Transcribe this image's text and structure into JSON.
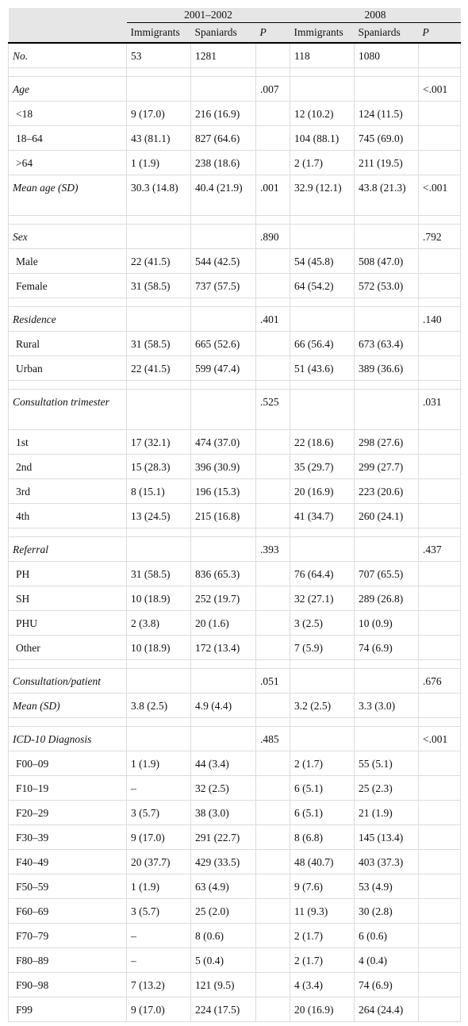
{
  "header": {
    "group1": "2001–2002",
    "group2": "2008",
    "columns": [
      "Immigrants",
      "Spaniards",
      "P",
      "Immigrants",
      "Spaniards",
      "P"
    ]
  },
  "rows": [
    {
      "type": "section",
      "label": "No.",
      "cells": [
        "53",
        "1281",
        "",
        "118",
        "1080",
        ""
      ]
    },
    {
      "type": "spacer"
    },
    {
      "type": "section",
      "label": "Age",
      "cells": [
        "",
        "",
        ".007",
        "",
        "",
        "<.001"
      ]
    },
    {
      "type": "sub",
      "label": "<18",
      "cells": [
        "9 (17.0)",
        "216 (16.9)",
        "",
        "12 (10.2)",
        "124 (11.5)",
        ""
      ]
    },
    {
      "type": "sub",
      "label": "18–64",
      "cells": [
        "43 (81.1)",
        "827 (64.6)",
        "",
        "104 (88.1)",
        "745 (69.0)",
        ""
      ]
    },
    {
      "type": "sub",
      "label": ">64",
      "cells": [
        "1 (1.9)",
        "238 (18.6)",
        "",
        "2 (1.7)",
        "211 (19.5)",
        ""
      ]
    },
    {
      "type": "section",
      "tall": true,
      "label": "Mean age (SD)",
      "cells": [
        "30.3 (14.8)",
        "40.4 (21.9)",
        ".001",
        "32.9 (12.1)",
        "43.8 (21.3)",
        "<.001"
      ]
    },
    {
      "type": "spacer"
    },
    {
      "type": "section",
      "label": "Sex",
      "cells": [
        "",
        "",
        ".890",
        "",
        "",
        ".792"
      ]
    },
    {
      "type": "sub",
      "label": "Male",
      "cells": [
        "22 (41.5)",
        "544 (42.5)",
        "",
        "54 (45.8)",
        "508 (47.0)",
        ""
      ]
    },
    {
      "type": "sub",
      "label": "Female",
      "cells": [
        "31 (58.5)",
        "737 (57.5)",
        "",
        "64 (54.2)",
        "572 (53.0)",
        ""
      ]
    },
    {
      "type": "spacer"
    },
    {
      "type": "section",
      "label": "Residence",
      "cells": [
        "",
        "",
        ".401",
        "",
        "",
        ".140"
      ]
    },
    {
      "type": "sub",
      "label": "Rural",
      "cells": [
        "31 (58.5)",
        "665 (52.6)",
        "",
        "66 (56.4)",
        "673 (63.4)",
        ""
      ]
    },
    {
      "type": "sub",
      "label": "Urban",
      "cells": [
        "22 (41.5)",
        "599 (47.4)",
        "",
        "51 (43.6)",
        "389 (36.6)",
        ""
      ]
    },
    {
      "type": "spacer"
    },
    {
      "type": "section",
      "tall": true,
      "label": "Consultation trimester",
      "cells": [
        "",
        "",
        ".525",
        "",
        "",
        ".031"
      ]
    },
    {
      "type": "sub",
      "label": "1st",
      "cells": [
        "17 (32.1)",
        "474 (37.0)",
        "",
        "22 (18.6)",
        "298 (27.6)",
        ""
      ]
    },
    {
      "type": "sub",
      "label": "2nd",
      "cells": [
        "15 (28.3)",
        "396 (30.9)",
        "",
        "35 (29.7)",
        "299 (27.7)",
        ""
      ]
    },
    {
      "type": "sub",
      "label": "3rd",
      "cells": [
        "8 (15.1)",
        "196 (15.3)",
        "",
        "20 (16.9)",
        "223 (20.6)",
        ""
      ]
    },
    {
      "type": "sub",
      "label": "4th",
      "cells": [
        "13 (24.5)",
        "215 (16.8)",
        "",
        "41 (34.7)",
        "260 (24.1)",
        ""
      ]
    },
    {
      "type": "spacer"
    },
    {
      "type": "section",
      "label": "Referral",
      "cells": [
        "",
        "",
        ".393",
        "",
        "",
        ".437"
      ]
    },
    {
      "type": "sub",
      "label": "PH",
      "cells": [
        "31 (58.5)",
        "836 (65.3)",
        "",
        "76 (64.4)",
        "707 (65.5)",
        ""
      ]
    },
    {
      "type": "sub",
      "label": "SH",
      "cells": [
        "10 (18.9)",
        "252 (19.7)",
        "",
        "32 (27.1)",
        "289 (26.8)",
        ""
      ]
    },
    {
      "type": "sub",
      "label": "PHU",
      "cells": [
        "2 (3.8)",
        "20 (1.6)",
        "",
        "3 (2.5)",
        "10 (0.9)",
        ""
      ]
    },
    {
      "type": "sub",
      "label": "Other",
      "cells": [
        "10 (18.9)",
        "172 (13.4)",
        "",
        "7 (5.9)",
        "74 (6.9)",
        ""
      ]
    },
    {
      "type": "spacer"
    },
    {
      "type": "section",
      "label": "Consultation/patient",
      "cells": [
        "",
        "",
        ".051",
        "",
        "",
        ".676"
      ]
    },
    {
      "type": "section",
      "label": "Mean (SD)",
      "cells": [
        "3.8 (2.5)",
        "4.9 (4.4)",
        "",
        "3.2 (2.5)",
        "3.3 (3.0)",
        ""
      ]
    },
    {
      "type": "spacer"
    },
    {
      "type": "section",
      "label": "ICD-10 Diagnosis",
      "cells": [
        "",
        "",
        ".485",
        "",
        "",
        "<.001"
      ]
    },
    {
      "type": "sub",
      "label": "F00–09",
      "cells": [
        "1 (1.9)",
        "44 (3.4)",
        "",
        "2 (1.7)",
        "55 (5.1)",
        ""
      ]
    },
    {
      "type": "sub",
      "label": "F10–19",
      "cells": [
        "–",
        "32 (2.5)",
        "",
        "6 (5.1)",
        "25 (2.3)",
        ""
      ]
    },
    {
      "type": "sub",
      "label": "F20–29",
      "cells": [
        "3 (5.7)",
        "38 (3.0)",
        "",
        "6 (5.1)",
        "21 (1.9)",
        ""
      ]
    },
    {
      "type": "sub",
      "label": "F30–39",
      "cells": [
        "9 (17.0)",
        "291 (22.7)",
        "",
        "8 (6.8)",
        "145 (13.4)",
        ""
      ]
    },
    {
      "type": "sub",
      "label": "F40–49",
      "cells": [
        "20 (37.7)",
        "429 (33.5)",
        "",
        "48 (40.7)",
        "403 (37.3)",
        ""
      ]
    },
    {
      "type": "sub",
      "label": "F50–59",
      "cells": [
        "1 (1.9)",
        "63 (4.9)",
        "",
        "9 (7.6)",
        "53 (4.9)",
        ""
      ]
    },
    {
      "type": "sub",
      "label": "F60–69",
      "cells": [
        "3 (5.7)",
        "25 (2.0)",
        "",
        "11 (9.3)",
        "30 (2.8)",
        ""
      ]
    },
    {
      "type": "sub",
      "label": "F70–79",
      "cells": [
        "–",
        "8 (0.6)",
        "",
        "2 (1.7)",
        "6 (0.6)",
        ""
      ]
    },
    {
      "type": "sub",
      "label": "F80–89",
      "cells": [
        "–",
        "5 (0.4)",
        "",
        "2 (1.7)",
        "4 (0.4)",
        ""
      ]
    },
    {
      "type": "sub",
      "label": "F90–98",
      "cells": [
        "7 (13.2)",
        "121 (9.5)",
        "",
        "4 (3.4)",
        "74 (6.9)",
        ""
      ]
    },
    {
      "type": "sub",
      "label": "F99",
      "cells": [
        "9 (17.0)",
        "224 (17.5)",
        "",
        "20 (16.9)",
        "264 (24.4)",
        ""
      ]
    }
  ]
}
